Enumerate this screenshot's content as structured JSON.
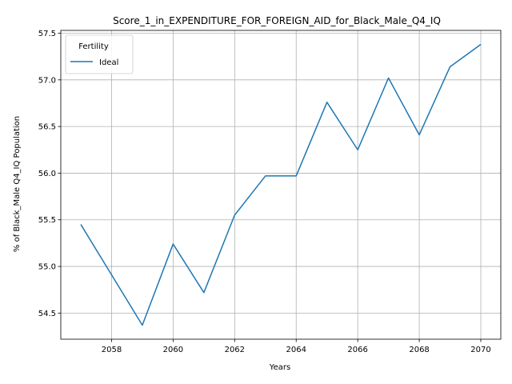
{
  "chart_data": {
    "type": "line",
    "title": "Score_1_in_EXPENDITURE_FOR_FOREIGN_AID_for_Black_Male_Q4_IQ",
    "xlabel": "Years",
    "ylabel": "% of Black_Male Q4_IQ Population",
    "xlim": [
      2056.35,
      2070.65
    ],
    "ylim": [
      54.22,
      57.53
    ],
    "xticks": [
      2058,
      2060,
      2062,
      2064,
      2066,
      2068,
      2070
    ],
    "yticks": [
      54.5,
      55.0,
      55.5,
      56.0,
      56.5,
      57.0,
      57.5
    ],
    "xtick_labels": [
      "2058",
      "2060",
      "2062",
      "2064",
      "2066",
      "2068",
      "2070"
    ],
    "ytick_labels": [
      "54.5",
      "55.0",
      "55.5",
      "56.0",
      "56.5",
      "57.0",
      "57.5"
    ],
    "grid": true,
    "legend": {
      "title": "Fertility",
      "placement": "top-left"
    },
    "series": [
      {
        "name": "Ideal",
        "color": "#1f77b4",
        "x": [
          2057,
          2058,
          2059,
          2060,
          2061,
          2062,
          2063,
          2064,
          2065,
          2066,
          2067,
          2068,
          2069,
          2070
        ],
        "y": [
          55.45,
          54.91,
          54.37,
          55.24,
          54.72,
          55.55,
          55.97,
          55.97,
          56.76,
          56.25,
          57.02,
          56.41,
          57.14,
          57.38
        ]
      }
    ]
  }
}
